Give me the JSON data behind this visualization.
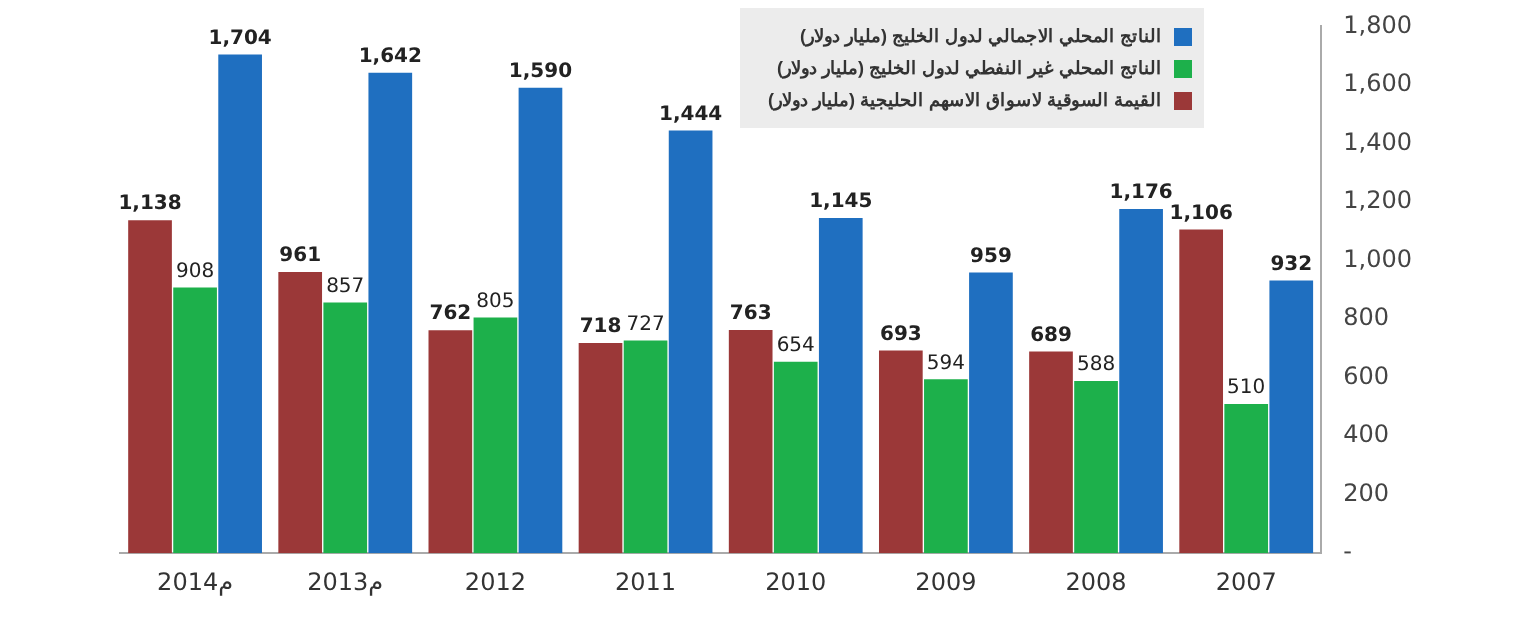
{
  "chart_data": {
    "type": "bar",
    "categories": [
      "2014م",
      "2013م",
      "2012",
      "2011",
      "2010",
      "2009",
      "2008",
      "2007"
    ],
    "series": [
      {
        "name": "القيمة السوقية لاسواق الاسهم الحليجية (مليار دولار)",
        "color": "#9b3838",
        "values": [
          1138,
          961,
          762,
          718,
          763,
          693,
          689,
          1106
        ],
        "value_labels": [
          "1,138",
          "961",
          "762",
          "718",
          "763",
          "693",
          "689",
          "1,106"
        ]
      },
      {
        "name": "الناتج المحلي غير النفطي لدول الخليج (مليار دولار)",
        "color": "#1db04b",
        "values": [
          908,
          857,
          805,
          727,
          654,
          594,
          588,
          510
        ],
        "value_labels": [
          "908",
          "857",
          "805",
          "727",
          "654",
          "594",
          "588",
          "510"
        ]
      },
      {
        "name": "الناتج المحلي الاجمالي لدول الخليج (مليار دولار)",
        "color": "#1f6fc0",
        "values": [
          1704,
          1642,
          1590,
          1444,
          1145,
          959,
          1176,
          932
        ],
        "value_labels": [
          "1,704",
          "1,642",
          "1,590",
          "1,444",
          "1,145",
          "959",
          "1,176",
          "932"
        ]
      }
    ],
    "ylim": [
      0,
      1800
    ],
    "yticks": [
      {
        "value": 0,
        "label": "-"
      },
      {
        "value": 200,
        "label": "200"
      },
      {
        "value": 400,
        "label": "400"
      },
      {
        "value": 600,
        "label": "600"
      },
      {
        "value": 800,
        "label": "800"
      },
      {
        "value": 1000,
        "label": "1,000"
      },
      {
        "value": 1200,
        "label": "1,200"
      },
      {
        "value": 1400,
        "label": "1,400"
      },
      {
        "value": 1600,
        "label": "1,600"
      },
      {
        "value": 1800,
        "label": "1,800"
      }
    ],
    "grid": false,
    "legend": "top right"
  }
}
